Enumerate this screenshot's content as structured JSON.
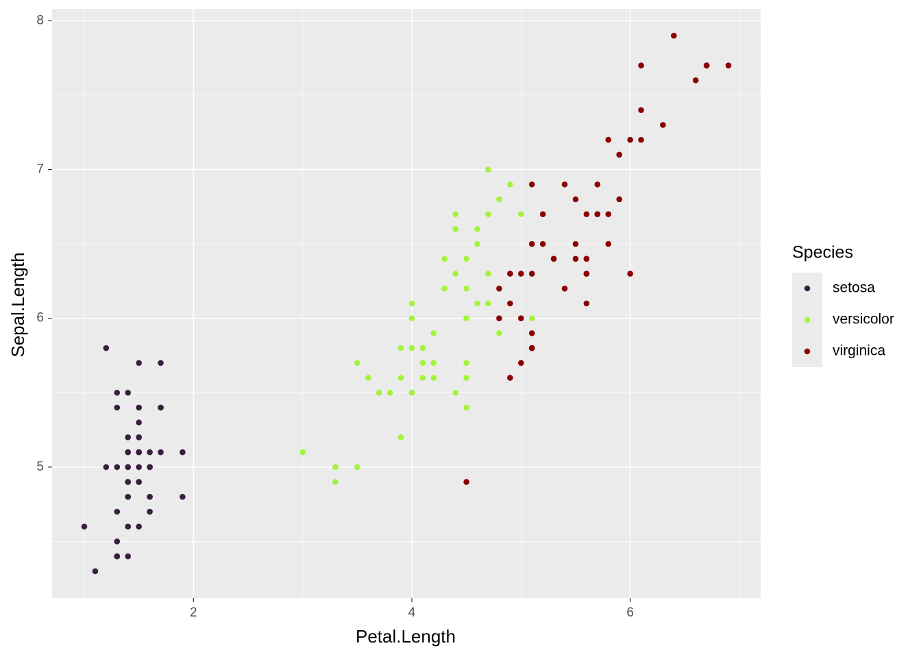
{
  "chart_data": {
    "type": "scatter",
    "x_label": "Petal.Length",
    "y_label": "Sepal.Length",
    "legend_title": "Species",
    "legend_position": "right",
    "xlim": [
      0.705,
      7.195
    ],
    "ylim": [
      4.12,
      8.08
    ],
    "xticks": [
      2,
      4,
      6
    ],
    "yticks": [
      5,
      6,
      7,
      8
    ],
    "x_minor_ticks": [
      1,
      3,
      5,
      7
    ],
    "y_minor_ticks": [
      4.5,
      5.5,
      6.5,
      7.5
    ],
    "grid": true,
    "series": [
      {
        "name": "setosa",
        "color": "#3a1e3f",
        "x": [
          1.4,
          1.4,
          1.3,
          1.5,
          1.4,
          1.7,
          1.4,
          1.5,
          1.4,
          1.5,
          1.5,
          1.6,
          1.4,
          1.1,
          1.2,
          1.5,
          1.3,
          1.4,
          1.7,
          1.5,
          1.7,
          1.5,
          1.0,
          1.7,
          1.9,
          1.6,
          1.6,
          1.5,
          1.4,
          1.6,
          1.6,
          1.5,
          1.5,
          1.4,
          1.5,
          1.2,
          1.3,
          1.4,
          1.3,
          1.5,
          1.3,
          1.3,
          1.3,
          1.6,
          1.9,
          1.4,
          1.6,
          1.4,
          1.5,
          1.4
        ],
        "values": [
          5.1,
          4.9,
          4.7,
          4.6,
          5.0,
          5.4,
          4.6,
          5.0,
          4.4,
          4.9,
          5.4,
          4.8,
          4.8,
          4.3,
          5.8,
          5.7,
          5.4,
          5.1,
          5.7,
          5.1,
          5.4,
          5.1,
          4.6,
          5.1,
          4.8,
          5.0,
          5.0,
          5.2,
          5.2,
          4.7,
          4.8,
          5.4,
          5.2,
          5.5,
          4.9,
          5.0,
          5.5,
          4.9,
          4.4,
          5.1,
          5.0,
          4.5,
          4.4,
          5.0,
          5.1,
          4.8,
          5.1,
          4.6,
          5.3,
          5.0
        ]
      },
      {
        "name": "versicolor",
        "color": "#a2f43c",
        "x": [
          4.7,
          4.5,
          4.9,
          4.0,
          4.6,
          4.5,
          4.7,
          3.3,
          4.6,
          3.9,
          3.5,
          4.2,
          4.0,
          4.7,
          3.6,
          4.4,
          4.5,
          4.1,
          4.5,
          3.9,
          4.8,
          4.0,
          4.9,
          4.7,
          4.3,
          4.4,
          4.8,
          5.0,
          4.5,
          3.5,
          3.8,
          3.7,
          3.9,
          5.1,
          4.5,
          4.5,
          4.7,
          4.4,
          4.1,
          4.0,
          4.4,
          4.6,
          4.0,
          3.3,
          4.2,
          4.2,
          4.2,
          4.3,
          3.0,
          4.1
        ],
        "values": [
          7.0,
          6.4,
          6.9,
          5.5,
          6.5,
          5.7,
          6.3,
          4.9,
          6.6,
          5.2,
          5.0,
          5.9,
          6.0,
          6.1,
          5.6,
          6.7,
          5.6,
          5.8,
          6.2,
          5.6,
          5.9,
          6.1,
          6.3,
          6.1,
          6.4,
          6.6,
          6.8,
          6.7,
          6.0,
          5.7,
          5.5,
          5.5,
          5.8,
          6.0,
          5.4,
          6.0,
          6.7,
          6.3,
          5.6,
          5.5,
          5.5,
          6.1,
          5.8,
          5.0,
          5.6,
          5.7,
          5.7,
          6.2,
          5.1,
          5.7
        ]
      },
      {
        "name": "virginica",
        "color": "#8b0000",
        "x": [
          6.0,
          5.1,
          5.9,
          5.6,
          5.8,
          6.6,
          4.5,
          6.3,
          5.8,
          6.1,
          5.1,
          5.3,
          5.5,
          5.0,
          5.1,
          5.3,
          5.5,
          6.7,
          6.9,
          5.0,
          5.7,
          4.9,
          6.7,
          4.9,
          5.7,
          6.0,
          4.8,
          4.9,
          5.6,
          5.8,
          6.1,
          6.4,
          5.6,
          5.1,
          5.6,
          6.1,
          5.6,
          5.5,
          4.8,
          5.4,
          5.6,
          5.1,
          5.1,
          5.9,
          5.7,
          5.2,
          5.0,
          5.2,
          5.4,
          5.1
        ],
        "values": [
          6.3,
          5.8,
          7.1,
          6.3,
          6.5,
          7.6,
          4.9,
          7.3,
          6.7,
          7.2,
          6.5,
          6.4,
          6.8,
          5.7,
          5.8,
          6.4,
          6.5,
          7.7,
          7.7,
          6.0,
          6.9,
          5.6,
          7.7,
          6.3,
          6.7,
          7.2,
          6.2,
          6.1,
          6.4,
          7.2,
          7.4,
          7.9,
          6.4,
          6.3,
          6.1,
          7.7,
          6.3,
          6.4,
          6.0,
          6.9,
          6.7,
          6.9,
          5.8,
          6.8,
          6.7,
          6.7,
          6.3,
          6.5,
          6.2,
          5.9
        ]
      }
    ]
  }
}
